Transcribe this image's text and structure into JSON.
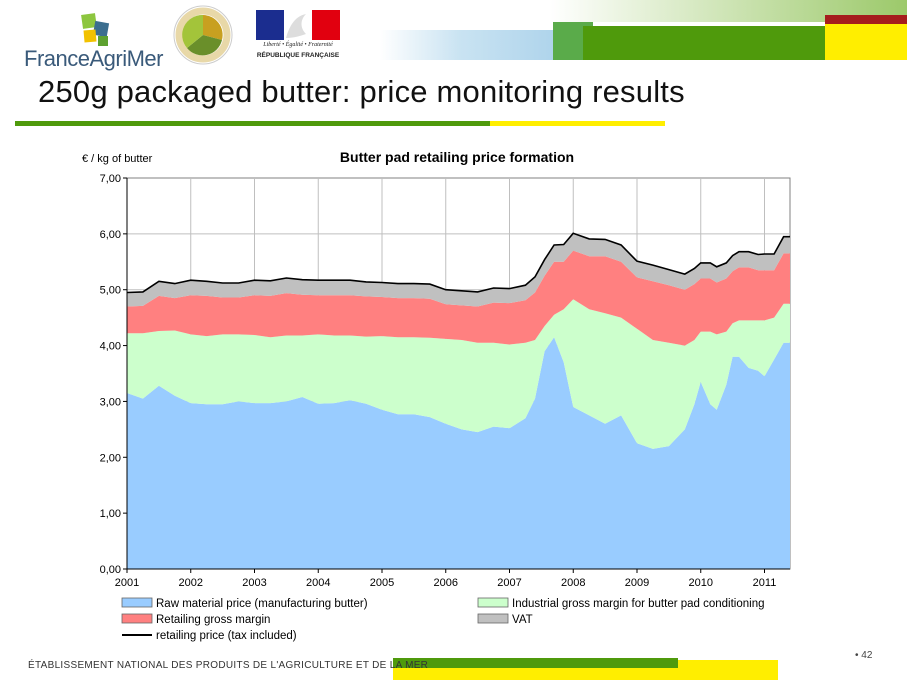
{
  "header": {
    "logo_franceagrimer": "FranceAgriMer",
    "logo_rf_motto": "Liberté • Égalité • Fraternité",
    "logo_rf_name": "RÉPUBLIQUE FRANÇAISE",
    "title": "250g packaged butter: price monitoring results"
  },
  "footer": {
    "text": "ÉTABLISSEMENT NATIONAL DES PRODUITS DE L'AGRICULTURE ET DE LA MER",
    "page_number": "• 42"
  },
  "colors": {
    "raw_material": "#99ccff",
    "industrial_margin": "#ccffcc",
    "retailing_margin": "#ff8080",
    "vat": "#c0c0c0",
    "retail_price_line": "#000000",
    "brand_green": "#4f9a0c",
    "brand_yellow": "#ffee00"
  },
  "chart_data": {
    "type": "area",
    "title": "Butter pad retailing price formation",
    "ylabel": "€ / kg of butter",
    "xlabel": "",
    "ylim": [
      0,
      7
    ],
    "xlim": [
      2001,
      2011.4
    ],
    "y_ticks": [
      "0,00",
      "1,00",
      "2,00",
      "3,00",
      "4,00",
      "5,00",
      "6,00",
      "7,00"
    ],
    "x_ticks": [
      "2001",
      "2002",
      "2003",
      "2004",
      "2005",
      "2006",
      "2007",
      "2008",
      "2009",
      "2010",
      "2011"
    ],
    "grid": true,
    "legend": "bottom",
    "x": [
      2001.0,
      2001.25,
      2001.5,
      2001.75,
      2002.0,
      2002.25,
      2002.5,
      2002.75,
      2003.0,
      2003.25,
      2003.5,
      2003.75,
      2004.0,
      2004.25,
      2004.5,
      2004.75,
      2005.0,
      2005.25,
      2005.5,
      2005.75,
      2006.0,
      2006.25,
      2006.5,
      2006.75,
      2007.0,
      2007.25,
      2007.4,
      2007.55,
      2007.7,
      2007.85,
      2008.0,
      2008.25,
      2008.5,
      2008.75,
      2009.0,
      2009.25,
      2009.5,
      2009.75,
      2009.9,
      2010.0,
      2010.15,
      2010.25,
      2010.4,
      2010.5,
      2010.6,
      2010.75,
      2010.9,
      2011.0,
      2011.15,
      2011.3,
      2011.4
    ],
    "series": [
      {
        "name": "Raw material price (manufacturing butter)",
        "values": [
          3.15,
          3.05,
          3.28,
          3.1,
          2.97,
          2.95,
          2.95,
          3.0,
          2.97,
          2.97,
          3.0,
          3.08,
          2.96,
          2.97,
          3.02,
          2.96,
          2.85,
          2.77,
          2.77,
          2.72,
          2.6,
          2.5,
          2.45,
          2.55,
          2.52,
          2.7,
          3.05,
          3.9,
          4.15,
          3.7,
          2.9,
          2.75,
          2.6,
          2.75,
          2.25,
          2.15,
          2.2,
          2.5,
          2.95,
          3.35,
          2.95,
          2.85,
          3.3,
          3.8,
          3.8,
          3.6,
          3.55,
          3.45,
          3.75,
          4.05,
          4.05
        ]
      },
      {
        "name": "Industrial gross margin for butter pad conditioning",
        "values": [
          1.07,
          1.17,
          0.98,
          1.17,
          1.23,
          1.22,
          1.25,
          1.2,
          1.22,
          1.18,
          1.18,
          1.1,
          1.24,
          1.21,
          1.16,
          1.2,
          1.32,
          1.38,
          1.38,
          1.42,
          1.52,
          1.6,
          1.6,
          1.5,
          1.5,
          1.35,
          1.05,
          0.45,
          0.4,
          0.95,
          1.93,
          1.9,
          1.98,
          1.75,
          2.05,
          1.95,
          1.85,
          1.5,
          1.15,
          0.9,
          1.3,
          1.35,
          0.95,
          0.6,
          0.65,
          0.85,
          0.9,
          1.0,
          0.75,
          0.7,
          0.7
        ]
      },
      {
        "name": "Retailing gross margin",
        "values": [
          0.48,
          0.49,
          0.63,
          0.58,
          0.7,
          0.72,
          0.66,
          0.66,
          0.71,
          0.74,
          0.76,
          0.73,
          0.7,
          0.72,
          0.72,
          0.72,
          0.7,
          0.7,
          0.7,
          0.7,
          0.62,
          0.62,
          0.65,
          0.72,
          0.74,
          0.76,
          0.85,
          0.9,
          0.95,
          0.85,
          0.87,
          0.95,
          1.02,
          1.0,
          0.92,
          1.05,
          1.03,
          1.0,
          1.0,
          0.95,
          0.95,
          0.93,
          0.95,
          0.93,
          0.95,
          0.95,
          0.9,
          0.9,
          0.85,
          0.9,
          0.9
        ]
      },
      {
        "name": "VAT",
        "values": [
          0.25,
          0.25,
          0.26,
          0.26,
          0.27,
          0.26,
          0.26,
          0.26,
          0.27,
          0.27,
          0.27,
          0.27,
          0.27,
          0.27,
          0.27,
          0.26,
          0.26,
          0.26,
          0.26,
          0.26,
          0.26,
          0.26,
          0.26,
          0.26,
          0.26,
          0.27,
          0.28,
          0.29,
          0.3,
          0.31,
          0.31,
          0.31,
          0.3,
          0.3,
          0.29,
          0.29,
          0.28,
          0.28,
          0.28,
          0.28,
          0.28,
          0.28,
          0.28,
          0.28,
          0.28,
          0.28,
          0.28,
          0.29,
          0.29,
          0.3,
          0.3
        ]
      }
    ],
    "line_series": {
      "name": "retailing price (tax included)",
      "values": [
        4.95,
        4.96,
        5.15,
        5.11,
        5.17,
        5.15,
        5.12,
        5.12,
        5.17,
        5.16,
        5.21,
        5.18,
        5.17,
        5.17,
        5.17,
        5.14,
        5.13,
        5.11,
        5.11,
        5.1,
        5.0,
        4.98,
        4.96,
        5.03,
        5.02,
        5.08,
        5.23,
        5.54,
        5.8,
        5.81,
        6.01,
        5.91,
        5.9,
        5.8,
        5.51,
        5.44,
        5.36,
        5.28,
        5.38,
        5.48,
        5.48,
        5.41,
        5.48,
        5.61,
        5.68,
        5.68,
        5.63,
        5.64,
        5.64,
        5.95,
        5.95
      ]
    }
  }
}
